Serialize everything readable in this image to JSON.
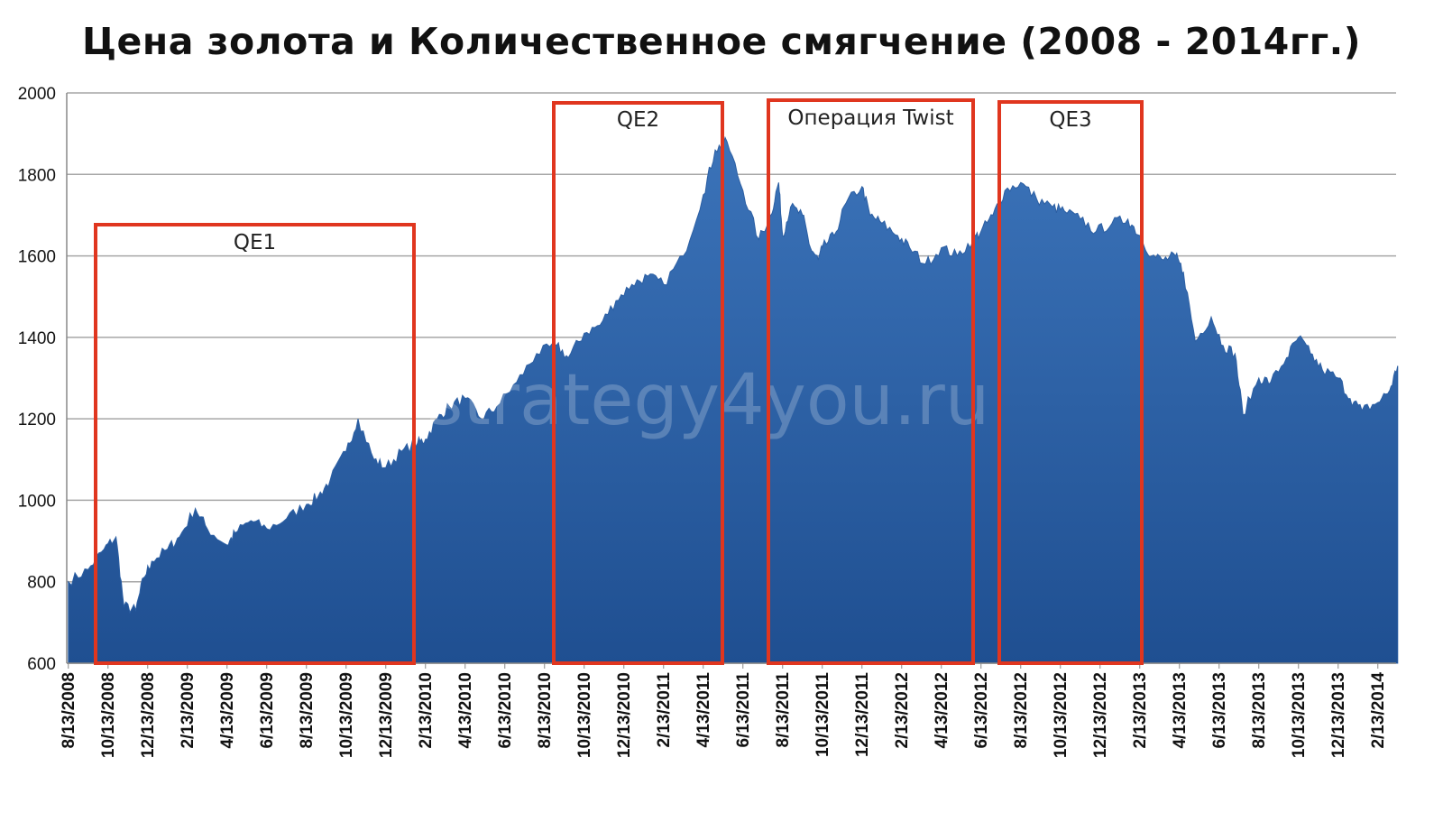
{
  "title": "Цена золота и Количественное смягчение (2008 - 2014гг.)",
  "watermark": "strategy4you.ru",
  "colors": {
    "area": "#3b73b9",
    "area_dark": "#1f4f91",
    "box": "#e0361f",
    "grid": "#a6a6a6"
  },
  "chart_data": {
    "type": "area",
    "title": "Цена золота и Количественное смягчение (2008 - 2014гг.)",
    "xlabel": "",
    "ylabel": "",
    "ylim": [
      600,
      2000
    ],
    "yticks": [
      "600",
      "800",
      "1000",
      "1200",
      "1400",
      "1600",
      "1800",
      "2000"
    ],
    "xticks": [
      "8/13/2008",
      "10/13/2008",
      "12/13/2008",
      "2/13/2009",
      "4/13/2009",
      "6/13/2009",
      "8/13/2009",
      "10/13/2009",
      "12/13/2009",
      "2/13/2010",
      "4/13/2010",
      "6/13/2010",
      "8/13/2010",
      "10/13/2010",
      "12/13/2010",
      "2/13/2011",
      "4/13/2011",
      "6/13/2011",
      "8/13/2011",
      "10/13/2011",
      "12/13/2011",
      "2/13/2012",
      "4/13/2012",
      "6/13/2012",
      "8/13/2012",
      "10/13/2012",
      "12/13/2012",
      "2/13/2013",
      "4/13/2013",
      "6/13/2013",
      "8/13/2013",
      "10/13/2013",
      "12/13/2013",
      "2/13/2014"
    ],
    "grid": true,
    "series": [
      {
        "x": [
          0,
          0.5,
          0.9,
          1.2,
          1.4,
          1.7,
          1.9,
          2.1,
          2.5,
          2.8,
          3.2,
          3.5,
          4,
          4.2,
          4.6,
          5,
          5.5,
          6,
          6.3,
          6.6,
          7,
          7.3,
          7.7,
          8,
          8.4,
          8.8,
          9,
          9.3,
          9.6,
          10,
          10.4,
          10.8,
          11.3,
          11.8,
          12.3,
          12.6,
          13,
          13.4,
          13.8,
          14.2,
          14.6,
          15,
          15.5,
          16,
          16.3,
          16.6,
          17,
          17.4,
          17.7,
          17.9,
          18,
          18.2,
          18.5,
          18.7,
          18.9,
          19,
          19.3,
          19.6,
          20,
          20.2,
          20.5,
          20.9,
          21.2,
          21.6,
          22,
          22.4,
          22.8,
          23,
          23.3,
          23.6,
          24,
          24.4,
          24.8,
          25.1,
          25.5,
          25.9,
          26.3,
          26.7,
          27,
          27.3,
          27.6,
          27.9,
          28.1,
          28.4,
          28.8,
          29.1,
          29.4,
          29.6,
          30,
          30.3,
          30.7,
          31,
          31.3,
          31.6,
          32,
          32.3,
          32.6,
          33,
          33.3,
          33.5
        ],
        "values": [
          800,
          830,
          880,
          910,
          740,
          730,
          810,
          850,
          880,
          910,
          980,
          930,
          890,
          920,
          950,
          930,
          955,
          990,
          1010,
          1050,
          1120,
          1200,
          1100,
          1080,
          1120,
          1140,
          1150,
          1200,
          1230,
          1250,
          1200,
          1230,
          1290,
          1360,
          1380,
          1350,
          1410,
          1430,
          1490,
          1530,
          1550,
          1530,
          1600,
          1750,
          1860,
          1880,
          1760,
          1640,
          1700,
          1780,
          1650,
          1720,
          1700,
          1620,
          1590,
          1620,
          1650,
          1730,
          1770,
          1700,
          1680,
          1650,
          1620,
          1580,
          1620,
          1600,
          1640,
          1660,
          1700,
          1760,
          1780,
          1740,
          1720,
          1710,
          1690,
          1660,
          1680,
          1690,
          1650,
          1600,
          1590,
          1600,
          1560,
          1390,
          1450,
          1380,
          1360,
          1210,
          1300,
          1290,
          1350,
          1400,
          1360,
          1320,
          1300,
          1250,
          1220,
          1240,
          1270,
          1330
        ],
        "note_units": "x in months since 8/13/2008 is not used; see xticks"
      }
    ]
  },
  "boxes": [
    {
      "label": "QE1"
    },
    {
      "label": "QE2"
    },
    {
      "label": "Операция Twist"
    },
    {
      "label": "QE3"
    }
  ]
}
